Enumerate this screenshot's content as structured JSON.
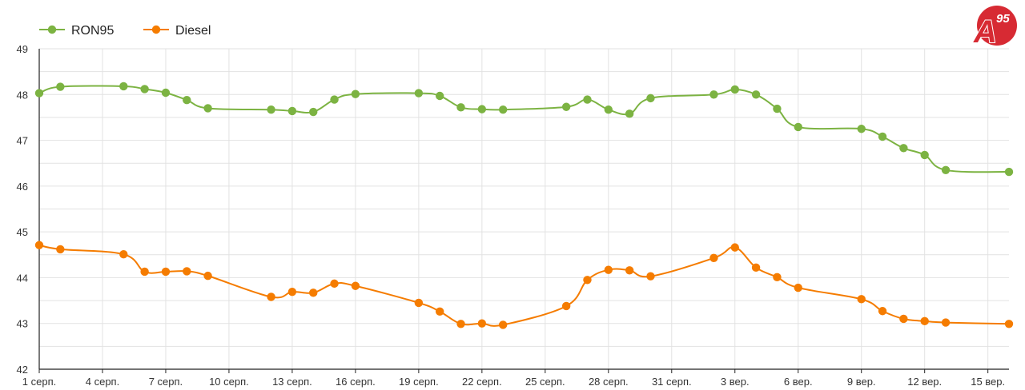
{
  "brand": {
    "logo_text": "A",
    "logo_superscript": "95",
    "logo_color": "#d72a33"
  },
  "chart_data": {
    "type": "line",
    "title": "",
    "xlabel": "",
    "ylabel": "",
    "ylim": [
      42,
      49
    ],
    "y_ticks": [
      "42",
      "43",
      "44",
      "45",
      "46",
      "47",
      "48",
      "49"
    ],
    "x_tick_labels": [
      "1 серп.",
      "4 серп.",
      "7 серп.",
      "10 серп.",
      "13 серп.",
      "16 серп.",
      "19 серп.",
      "22 серп.",
      "25 серп.",
      "28 серп.",
      "31 серп.",
      "3 вер.",
      "6 вер.",
      "9 вер.",
      "12 вер.",
      "15 вер."
    ],
    "grid": true,
    "legend_position": "top-left",
    "series": [
      {
        "name": "RON95",
        "color": "#7cb342",
        "points": [
          [
            0,
            48.03
          ],
          [
            1,
            48.17
          ],
          [
            4.0,
            48.18
          ],
          [
            5,
            48.12
          ],
          [
            6,
            48.04
          ],
          [
            7,
            47.88
          ],
          [
            8,
            47.7
          ],
          [
            11,
            47.67
          ],
          [
            12,
            47.64
          ],
          [
            13,
            47.62
          ],
          [
            14,
            47.89
          ],
          [
            15,
            48.01
          ],
          [
            18.0,
            48.03
          ],
          [
            19,
            47.97
          ],
          [
            20,
            47.72
          ],
          [
            21,
            47.68
          ],
          [
            22,
            47.67
          ],
          [
            25.0,
            47.73
          ],
          [
            26,
            47.89
          ],
          [
            27,
            47.67
          ],
          [
            28,
            47.58
          ],
          [
            29,
            47.92
          ],
          [
            32.0,
            48.0
          ],
          [
            33,
            48.11
          ],
          [
            34,
            48.0
          ],
          [
            35,
            47.69
          ],
          [
            36,
            47.29
          ],
          [
            39.0,
            47.25
          ],
          [
            40,
            47.08
          ],
          [
            41,
            46.83
          ],
          [
            42,
            46.68
          ],
          [
            43,
            46.35
          ],
          [
            46.0,
            46.31
          ]
        ]
      },
      {
        "name": "Diesel",
        "color": "#f57c00",
        "points": [
          [
            0,
            44.71
          ],
          [
            1,
            44.62
          ],
          [
            4.0,
            44.51
          ],
          [
            5,
            44.13
          ],
          [
            6,
            44.13
          ],
          [
            7,
            44.14
          ],
          [
            8,
            44.04
          ],
          [
            11,
            43.58
          ],
          [
            12,
            43.69
          ],
          [
            13,
            43.67
          ],
          [
            14,
            43.87
          ],
          [
            15,
            43.82
          ],
          [
            18.0,
            43.45
          ],
          [
            19,
            43.26
          ],
          [
            20,
            42.99
          ],
          [
            21,
            43.0
          ],
          [
            22,
            42.97
          ],
          [
            25.0,
            43.38
          ],
          [
            26,
            43.95
          ],
          [
            27,
            44.17
          ],
          [
            28,
            44.16
          ],
          [
            29,
            44.03
          ],
          [
            32.0,
            44.43
          ],
          [
            33,
            44.66
          ],
          [
            34,
            44.22
          ],
          [
            35,
            44.01
          ],
          [
            36,
            43.78
          ],
          [
            39.0,
            43.53
          ],
          [
            40,
            43.27
          ],
          [
            41,
            43.1
          ],
          [
            42,
            43.05
          ],
          [
            43,
            43.02
          ],
          [
            46.0,
            42.99
          ]
        ]
      }
    ]
  }
}
